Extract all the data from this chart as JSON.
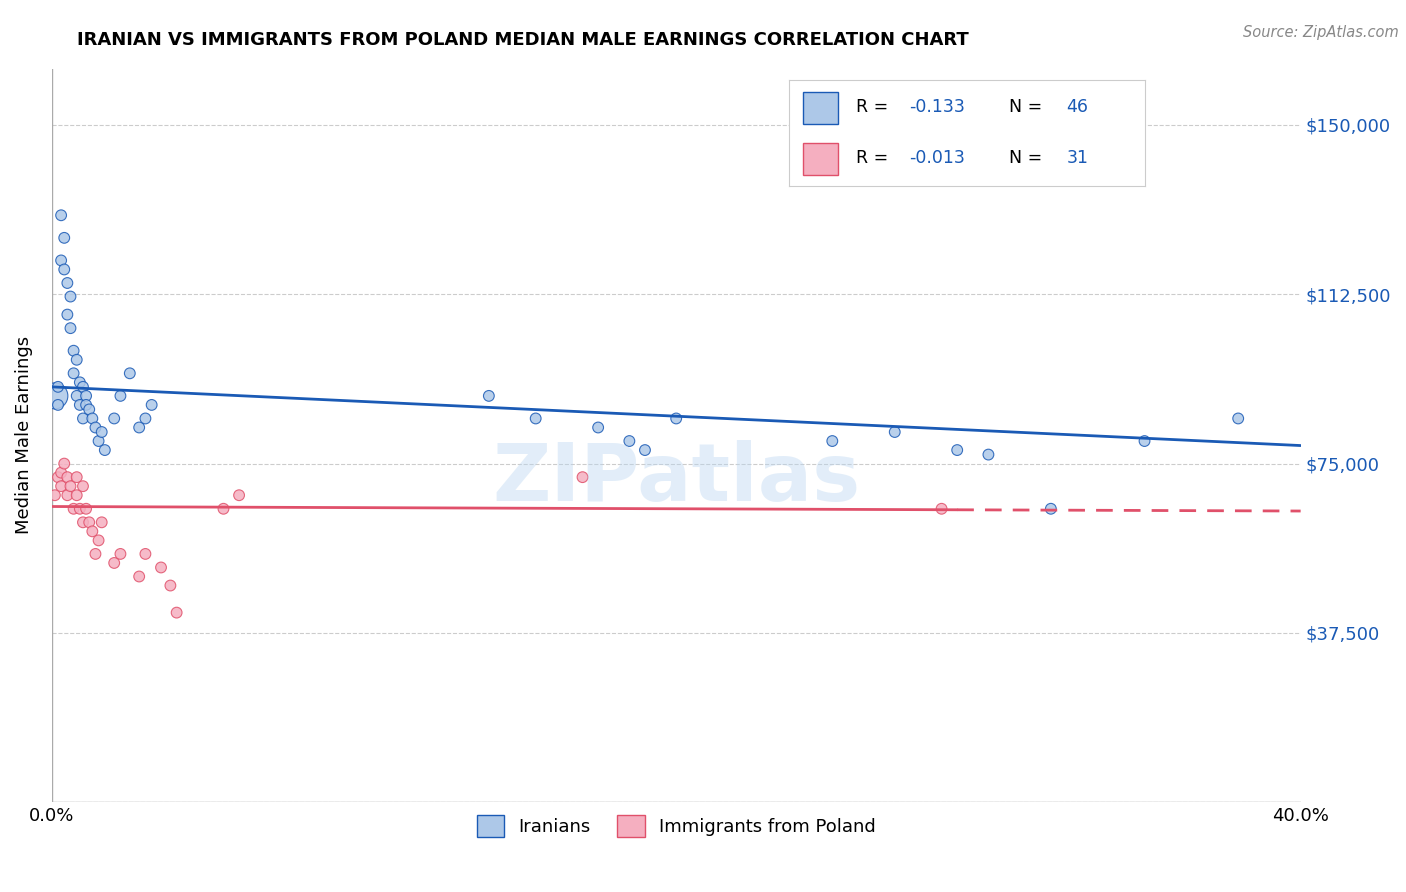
{
  "title": "IRANIAN VS IMMIGRANTS FROM POLAND MEDIAN MALE EARNINGS CORRELATION CHART",
  "source": "Source: ZipAtlas.com",
  "ylabel": "Median Male Earnings",
  "watermark": "ZIPatlas",
  "xlim": [
    0.0,
    0.4
  ],
  "ylim": [
    0,
    162500
  ],
  "yticks": [
    0,
    37500,
    75000,
    112500,
    150000
  ],
  "ytick_labels": [
    "",
    "$37,500",
    "$75,000",
    "$112,500",
    "$150,000"
  ],
  "xticks": [
    0.0,
    0.05,
    0.1,
    0.15,
    0.2,
    0.25,
    0.3,
    0.35,
    0.4
  ],
  "xtick_labels": [
    "0.0%",
    "",
    "",
    "",
    "",
    "",
    "",
    "",
    "40.0%"
  ],
  "color_iranian": "#adc8e8",
  "color_poland": "#f5afc0",
  "color_line_iranian": "#1a5ab5",
  "color_line_poland": "#e0506a",
  "background_color": "#ffffff",
  "grid_color": "#cccccc",
  "iranian_x": [
    0.001,
    0.002,
    0.002,
    0.003,
    0.003,
    0.004,
    0.004,
    0.005,
    0.005,
    0.006,
    0.006,
    0.007,
    0.007,
    0.008,
    0.008,
    0.009,
    0.009,
    0.01,
    0.01,
    0.011,
    0.011,
    0.012,
    0.013,
    0.014,
    0.015,
    0.016,
    0.017,
    0.02,
    0.022,
    0.025,
    0.028,
    0.03,
    0.032,
    0.14,
    0.155,
    0.175,
    0.185,
    0.19,
    0.2,
    0.25,
    0.27,
    0.29,
    0.3,
    0.32,
    0.35,
    0.38
  ],
  "iranian_y": [
    90000,
    92000,
    88000,
    130000,
    120000,
    125000,
    118000,
    115000,
    108000,
    105000,
    112000,
    100000,
    95000,
    98000,
    90000,
    93000,
    88000,
    92000,
    85000,
    90000,
    88000,
    87000,
    85000,
    83000,
    80000,
    82000,
    78000,
    85000,
    90000,
    95000,
    83000,
    85000,
    88000,
    90000,
    85000,
    83000,
    80000,
    78000,
    85000,
    80000,
    82000,
    78000,
    77000,
    65000,
    80000,
    85000
  ],
  "iranian_size": [
    350,
    60,
    60,
    60,
    60,
    60,
    60,
    60,
    60,
    60,
    60,
    60,
    60,
    60,
    60,
    60,
    60,
    60,
    60,
    60,
    60,
    60,
    60,
    60,
    60,
    60,
    60,
    60,
    60,
    60,
    60,
    60,
    60,
    60,
    60,
    60,
    60,
    60,
    60,
    60,
    60,
    60,
    60,
    60,
    60,
    60
  ],
  "poland_x": [
    0.001,
    0.002,
    0.003,
    0.003,
    0.004,
    0.005,
    0.005,
    0.006,
    0.007,
    0.008,
    0.008,
    0.009,
    0.01,
    0.01,
    0.011,
    0.012,
    0.013,
    0.014,
    0.015,
    0.016,
    0.02,
    0.022,
    0.028,
    0.03,
    0.035,
    0.038,
    0.04,
    0.055,
    0.06,
    0.17,
    0.285
  ],
  "poland_y": [
    68000,
    72000,
    73000,
    70000,
    75000,
    72000,
    68000,
    70000,
    65000,
    68000,
    72000,
    65000,
    62000,
    70000,
    65000,
    62000,
    60000,
    55000,
    58000,
    62000,
    53000,
    55000,
    50000,
    55000,
    52000,
    48000,
    42000,
    65000,
    68000,
    72000,
    65000
  ],
  "poland_size": [
    60,
    60,
    60,
    60,
    60,
    60,
    60,
    60,
    60,
    60,
    60,
    60,
    60,
    60,
    60,
    60,
    60,
    60,
    60,
    60,
    60,
    60,
    60,
    60,
    60,
    60,
    60,
    60,
    60,
    60,
    60
  ],
  "iranian_line_x": [
    0.0,
    0.4
  ],
  "iranian_line_y": [
    92000,
    79000
  ],
  "poland_line_x": [
    0.0,
    0.4
  ],
  "poland_line_y": [
    65500,
    64500
  ]
}
